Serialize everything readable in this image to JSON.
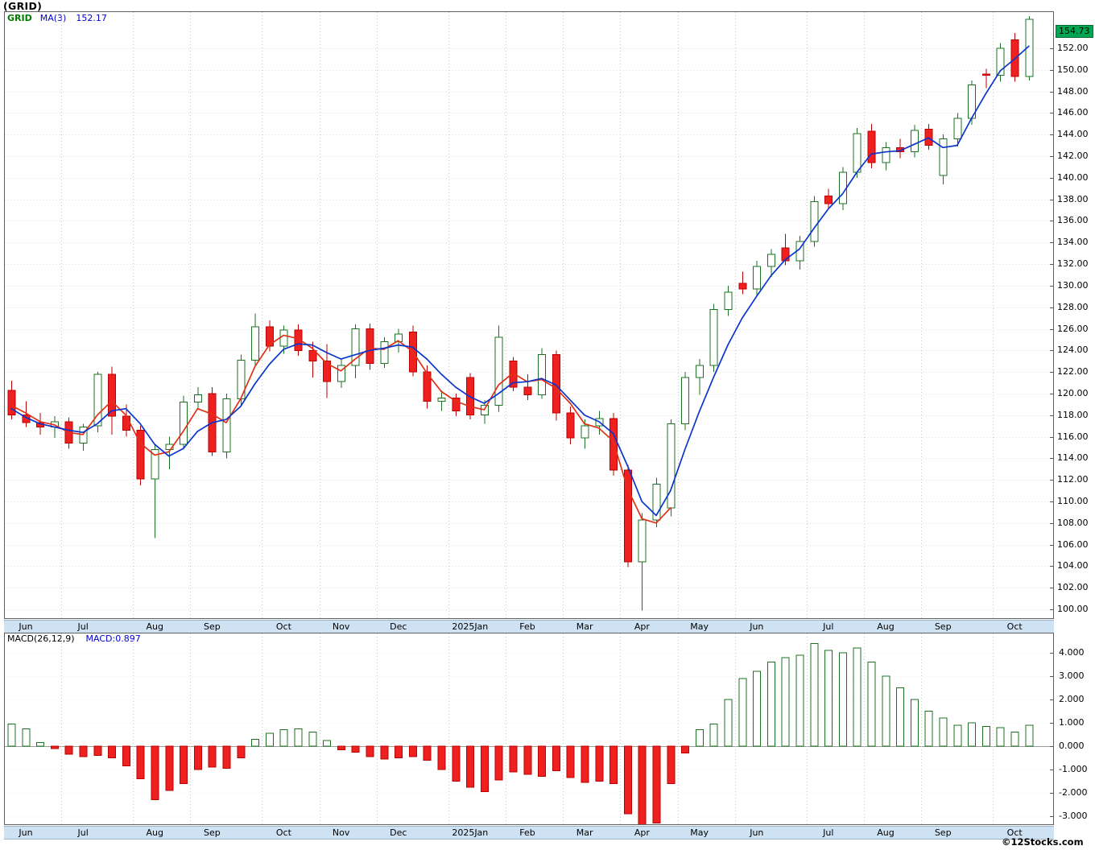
{
  "title": "(GRID)",
  "watermark": "©12Stocks.com",
  "main_panel": {
    "legend": {
      "symbol": "GRID",
      "ma_label": "MA(3)",
      "ma_value": "152.17"
    },
    "badge": "154.73"
  },
  "macd_panel": {
    "legend_left": "MACD(26,12,9)",
    "legend_right": "MACD:0.897"
  },
  "chart_data": {
    "type": "candlestick",
    "timeframe": "weekly",
    "title": "(GRID)",
    "legend": [
      "GRID",
      "MA(3) 152.17",
      "MACD(26,12,9)",
      "MACD:0.897"
    ],
    "last_price": 154.73,
    "price_axis": {
      "min": 100,
      "max": 152,
      "step": 2,
      "decimals": 2
    },
    "macd_axis": {
      "min": -3,
      "max": 4,
      "step": 1,
      "decimals": 3
    },
    "months": [
      {
        "label": "Jun",
        "start": 0
      },
      {
        "label": "Jul",
        "start": 4
      },
      {
        "label": "Aug",
        "start": 9
      },
      {
        "label": "Sep",
        "start": 13
      },
      {
        "label": "Oct",
        "start": 18
      },
      {
        "label": "Nov",
        "start": 22
      },
      {
        "label": "Dec",
        "start": 26
      },
      {
        "label": "2025Jan",
        "start": 31
      },
      {
        "label": "Feb",
        "start": 35
      },
      {
        "label": "Mar",
        "start": 39
      },
      {
        "label": "Apr",
        "start": 43
      },
      {
        "label": "May",
        "start": 47
      },
      {
        "label": "Jun",
        "start": 51
      },
      {
        "label": "Jul",
        "start": 56
      },
      {
        "label": "Aug",
        "start": 60
      },
      {
        "label": "Sep",
        "start": 64
      },
      {
        "label": "Oct",
        "start": 69
      }
    ],
    "candles": [
      [
        120.3,
        121.2,
        117.6,
        118.0
      ],
      [
        118.0,
        119.3,
        116.9,
        117.3
      ],
      [
        117.3,
        118.2,
        116.2,
        116.9
      ],
      [
        116.9,
        117.9,
        115.9,
        117.4
      ],
      [
        117.4,
        117.8,
        114.9,
        115.4
      ],
      [
        115.4,
        117.2,
        114.7,
        116.9
      ],
      [
        117.0,
        122.0,
        116.4,
        121.8
      ],
      [
        121.8,
        122.5,
        116.2,
        117.9
      ],
      [
        117.9,
        119.0,
        116.0,
        116.6
      ],
      [
        116.6,
        117.0,
        111.5,
        112.1
      ],
      [
        112.1,
        115.3,
        106.6,
        114.8
      ],
      [
        114.8,
        116.0,
        113.0,
        115.3
      ],
      [
        115.3,
        119.8,
        114.8,
        119.2
      ],
      [
        119.2,
        120.6,
        118.5,
        119.9
      ],
      [
        120.0,
        120.6,
        114.2,
        114.6
      ],
      [
        114.6,
        120.0,
        114.0,
        119.5
      ],
      [
        119.5,
        123.6,
        119.0,
        123.1
      ],
      [
        123.1,
        127.4,
        122.6,
        126.2
      ],
      [
        126.2,
        126.8,
        123.9,
        124.4
      ],
      [
        124.4,
        126.3,
        123.7,
        125.9
      ],
      [
        125.9,
        126.4,
        123.5,
        124.0
      ],
      [
        124.0,
        124.8,
        121.5,
        123.0
      ],
      [
        123.0,
        124.6,
        119.6,
        121.1
      ],
      [
        121.1,
        123.2,
        120.5,
        122.6
      ],
      [
        122.6,
        126.4,
        121.4,
        126.0
      ],
      [
        126.0,
        126.5,
        122.2,
        122.8
      ],
      [
        122.8,
        125.2,
        122.4,
        124.8
      ],
      [
        124.8,
        126.0,
        123.8,
        125.5
      ],
      [
        125.7,
        126.3,
        121.6,
        122.0
      ],
      [
        122.0,
        122.6,
        118.6,
        119.3
      ],
      [
        119.3,
        120.3,
        118.4,
        119.6
      ],
      [
        119.6,
        120.0,
        117.9,
        118.4
      ],
      [
        121.5,
        121.9,
        117.6,
        118.0
      ],
      [
        118.0,
        119.4,
        117.2,
        118.9
      ],
      [
        118.9,
        126.3,
        118.3,
        125.2
      ],
      [
        123.0,
        123.4,
        120.2,
        120.6
      ],
      [
        120.6,
        121.8,
        119.4,
        119.9
      ],
      [
        119.9,
        124.2,
        119.5,
        123.6
      ],
      [
        123.6,
        124.0,
        117.5,
        118.2
      ],
      [
        118.2,
        118.8,
        115.3,
        115.9
      ],
      [
        115.9,
        117.6,
        114.9,
        117.0
      ],
      [
        117.0,
        118.4,
        116.2,
        117.7
      ],
      [
        117.7,
        118.2,
        112.4,
        112.9
      ],
      [
        112.9,
        113.4,
        103.9,
        104.4
      ],
      [
        104.4,
        108.9,
        99.9,
        108.3
      ],
      [
        108.3,
        112.2,
        107.6,
        111.6
      ],
      [
        109.4,
        117.6,
        108.6,
        117.2
      ],
      [
        117.2,
        122.0,
        116.6,
        121.5
      ],
      [
        121.5,
        123.2,
        119.9,
        122.6
      ],
      [
        122.6,
        128.3,
        122.0,
        127.8
      ],
      [
        127.8,
        130.0,
        127.2,
        129.4
      ],
      [
        130.2,
        131.3,
        129.2,
        129.7
      ],
      [
        129.7,
        132.3,
        129.0,
        131.8
      ],
      [
        131.8,
        133.4,
        130.8,
        132.9
      ],
      [
        133.5,
        134.8,
        131.9,
        132.3
      ],
      [
        132.3,
        134.6,
        131.5,
        134.1
      ],
      [
        134.1,
        138.3,
        133.6,
        137.8
      ],
      [
        138.3,
        139.0,
        137.2,
        137.6
      ],
      [
        137.6,
        141.0,
        137.0,
        140.5
      ],
      [
        140.5,
        144.6,
        140.0,
        144.1
      ],
      [
        144.3,
        145.0,
        140.9,
        141.4
      ],
      [
        141.4,
        143.3,
        140.7,
        142.8
      ],
      [
        142.8,
        143.6,
        141.8,
        142.4
      ],
      [
        142.4,
        144.9,
        141.9,
        144.4
      ],
      [
        144.5,
        145.0,
        142.6,
        143.0
      ],
      [
        140.2,
        144.0,
        139.4,
        143.6
      ],
      [
        143.6,
        146.0,
        142.9,
        145.5
      ],
      [
        145.5,
        149.0,
        144.9,
        148.6
      ],
      [
        149.6,
        150.1,
        148.3,
        149.5
      ],
      [
        149.5,
        152.5,
        148.9,
        152.0
      ],
      [
        152.8,
        153.4,
        148.9,
        149.4
      ],
      [
        149.4,
        155.0,
        149.0,
        154.7
      ]
    ],
    "blue_ma": [
      118.6,
      117.8,
      117.2,
      116.9,
      116.6,
      116.4,
      117.2,
      118.4,
      118.6,
      117.2,
      115.3,
      114.2,
      114.9,
      116.5,
      117.3,
      117.6,
      118.8,
      120.9,
      122.7,
      124.1,
      124.6,
      124.5,
      123.8,
      123.2,
      123.6,
      124.0,
      124.2,
      124.5,
      124.3,
      123.2,
      121.8,
      120.6,
      119.7,
      119.1,
      120.0,
      121.0,
      121.1,
      121.4,
      120.8,
      119.4,
      118.0,
      117.4,
      116.3,
      113.3,
      110.0,
      108.7,
      111.0,
      114.8,
      118.3,
      121.5,
      124.5,
      127.0,
      129.0,
      130.9,
      132.4,
      133.4,
      135.3,
      137.1,
      138.5,
      140.5,
      142.2,
      142.4,
      142.5,
      143.1,
      143.7,
      142.8,
      143.0,
      145.5,
      147.8,
      149.9,
      151.0,
      152.2
    ],
    "red_ma": [
      118.9,
      118.2,
      117.4,
      117.1,
      116.4,
      116.2,
      118.0,
      119.3,
      118.0,
      115.4,
      114.3,
      114.6,
      116.5,
      118.6,
      118.1,
      117.3,
      119.5,
      122.5,
      124.5,
      125.4,
      125.1,
      124.2,
      122.8,
      122.1,
      123.2,
      124.2,
      124.1,
      124.9,
      123.9,
      121.9,
      120.2,
      119.3,
      118.8,
      118.5,
      120.8,
      121.9,
      121.1,
      121.3,
      120.5,
      119.1,
      117.2,
      116.8,
      115.6,
      111.2,
      108.4,
      108.0,
      109.4
    ],
    "macd_hist": [
      0.95,
      0.75,
      0.15,
      -0.1,
      -0.35,
      -0.45,
      -0.4,
      -0.5,
      -0.85,
      -1.4,
      -2.3,
      -1.9,
      -1.6,
      -1.0,
      -0.9,
      -0.95,
      -0.5,
      0.3,
      0.55,
      0.7,
      0.75,
      0.6,
      0.25,
      -0.15,
      -0.25,
      -0.45,
      -0.55,
      -0.5,
      -0.45,
      -0.6,
      -1.0,
      -1.5,
      -1.75,
      -1.95,
      -1.45,
      -1.1,
      -1.2,
      -1.3,
      -1.05,
      -1.35,
      -1.55,
      -1.5,
      -1.6,
      -2.9,
      -3.4,
      -3.3,
      -1.6,
      -0.3,
      0.7,
      0.95,
      2.0,
      2.9,
      3.2,
      3.6,
      3.8,
      3.9,
      4.4,
      4.1,
      4.0,
      4.2,
      3.6,
      3.0,
      2.5,
      2.0,
      1.5,
      1.2,
      0.9,
      1.0,
      0.85,
      0.8,
      0.6,
      0.897
    ],
    "colors": {
      "up_fill": "#ffffff",
      "up_stroke": "#1b7021",
      "down_fill": "#ee2020",
      "down_stroke": "#bb0000",
      "ma_blue": "#0a35cc",
      "ma_red": "#e03118",
      "grid_h": "#dcdcdc",
      "grid_v": "#c6c6c6",
      "panel_border": "#606060",
      "badge_bg": "#00a651"
    }
  }
}
